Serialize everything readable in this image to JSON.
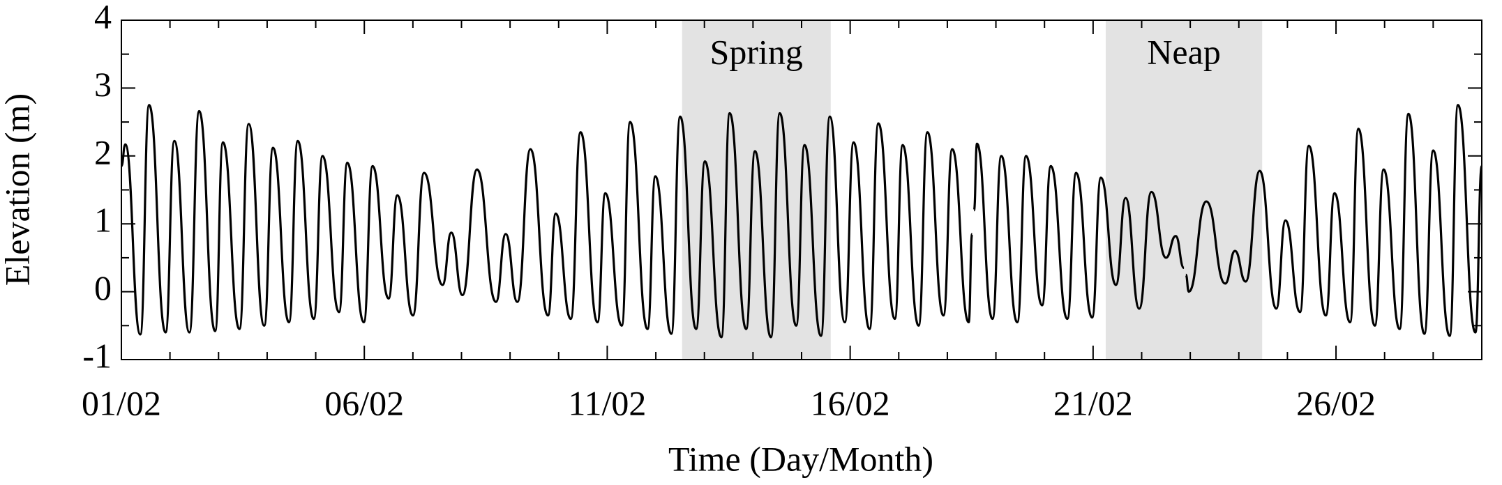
{
  "chart_data": {
    "type": "line",
    "xlabel": "Time (Day/Month)",
    "ylabel": "Elevation (m)",
    "color": "#000000",
    "shade_color": "#e3e3e3",
    "annotations": [
      {
        "label": "Spring",
        "x0": 12.54,
        "x1": 15.6
      },
      {
        "label": "Neap",
        "x0": 21.26,
        "x1": 24.48
      }
    ],
    "xlim": [
      1,
      29
    ],
    "xticks": [
      {
        "value": 1,
        "label": "01/02"
      },
      {
        "value": 6,
        "label": "06/02"
      },
      {
        "value": 11,
        "label": "11/02"
      },
      {
        "value": 16,
        "label": "16/02"
      },
      {
        "value": 21,
        "label": "21/02"
      },
      {
        "value": 26,
        "label": "26/02"
      }
    ],
    "xminorticks": [
      2,
      3,
      4,
      5,
      7,
      8,
      9,
      10,
      12,
      13,
      14,
      15,
      17,
      18,
      19,
      20,
      22,
      23,
      24,
      25,
      27,
      28
    ],
    "ylim": [
      -1,
      4
    ],
    "yticks": [
      -1,
      0,
      1,
      2,
      3,
      4
    ],
    "yminorticks": [
      -0.5,
      0.5,
      1.5,
      2.5,
      3.5
    ],
    "x": [
      1.0,
      1.08,
      1.39,
      1.57,
      1.91,
      2.09,
      2.4,
      2.6,
      2.93,
      3.09,
      3.43,
      3.62,
      3.94,
      4.12,
      4.45,
      4.63,
      4.96,
      5.14,
      5.48,
      5.65,
      5.99,
      6.17,
      6.5,
      6.68,
      7.0,
      7.23,
      7.61,
      7.79,
      8.02,
      8.32,
      8.71,
      8.91,
      9.15,
      9.42,
      9.78,
      9.94,
      10.25,
      10.45,
      10.8,
      10.96,
      11.3,
      11.47,
      11.83,
      11.99,
      12.32,
      12.5,
      12.83,
      13.01,
      13.35,
      13.52,
      13.86,
      14.04,
      14.37,
      14.55,
      14.89,
      15.06,
      15.4,
      15.58,
      15.89,
      16.07,
      16.4,
      16.58,
      16.92,
      17.08,
      17.41,
      17.59,
      17.92,
      18.1,
      18.44,
      18.51,
      18.53,
      18.55,
      18.61,
      18.93,
      19.11,
      19.44,
      19.62,
      19.95,
      20.13,
      20.47,
      20.65,
      20.98,
      21.16,
      21.47,
      21.67,
      21.95,
      22.2,
      22.5,
      22.7,
      22.87,
      22.89,
      22.91,
      22.97,
      23.33,
      23.72,
      23.92,
      24.14,
      24.43,
      24.77,
      24.96,
      25.26,
      25.44,
      25.79,
      25.97,
      26.29,
      26.46,
      26.8,
      26.98,
      27.31,
      27.49,
      27.82,
      28.0,
      28.34,
      28.51,
      28.87,
      29.0
    ],
    "values": [
      1.85,
      2.17,
      -0.63,
      2.75,
      -0.6,
      2.22,
      -0.6,
      2.66,
      -0.58,
      2.2,
      -0.55,
      2.47,
      -0.5,
      2.12,
      -0.45,
      2.22,
      -0.4,
      2.0,
      -0.3,
      1.9,
      -0.45,
      1.85,
      -0.1,
      1.42,
      -0.35,
      1.75,
      0.1,
      0.87,
      -0.05,
      1.8,
      -0.15,
      0.85,
      -0.15,
      2.1,
      -0.35,
      1.15,
      -0.4,
      2.35,
      -0.45,
      1.45,
      -0.5,
      2.5,
      -0.55,
      1.7,
      -0.62,
      2.58,
      -0.55,
      1.92,
      -0.67,
      2.63,
      -0.55,
      2.07,
      -0.67,
      2.63,
      -0.5,
      2.16,
      -0.65,
      2.58,
      -0.45,
      2.2,
      -0.55,
      2.48,
      -0.4,
      2.16,
      -0.5,
      2.35,
      -0.35,
      2.1,
      -0.45,
      0.85,
      null,
      1.2,
      2.18,
      -0.4,
      2.0,
      -0.45,
      2.0,
      -0.2,
      1.85,
      -0.4,
      1.75,
      -0.38,
      1.68,
      0.1,
      1.38,
      -0.25,
      1.47,
      0.5,
      0.82,
      0.35,
      null,
      0.25,
      0.0,
      1.33,
      0.12,
      0.6,
      0.15,
      1.78,
      -0.25,
      1.05,
      -0.3,
      2.15,
      -0.35,
      1.45,
      -0.45,
      2.4,
      -0.5,
      1.8,
      -0.55,
      2.62,
      -0.62,
      2.08,
      -0.65,
      2.75,
      -0.6,
      1.85
    ]
  }
}
